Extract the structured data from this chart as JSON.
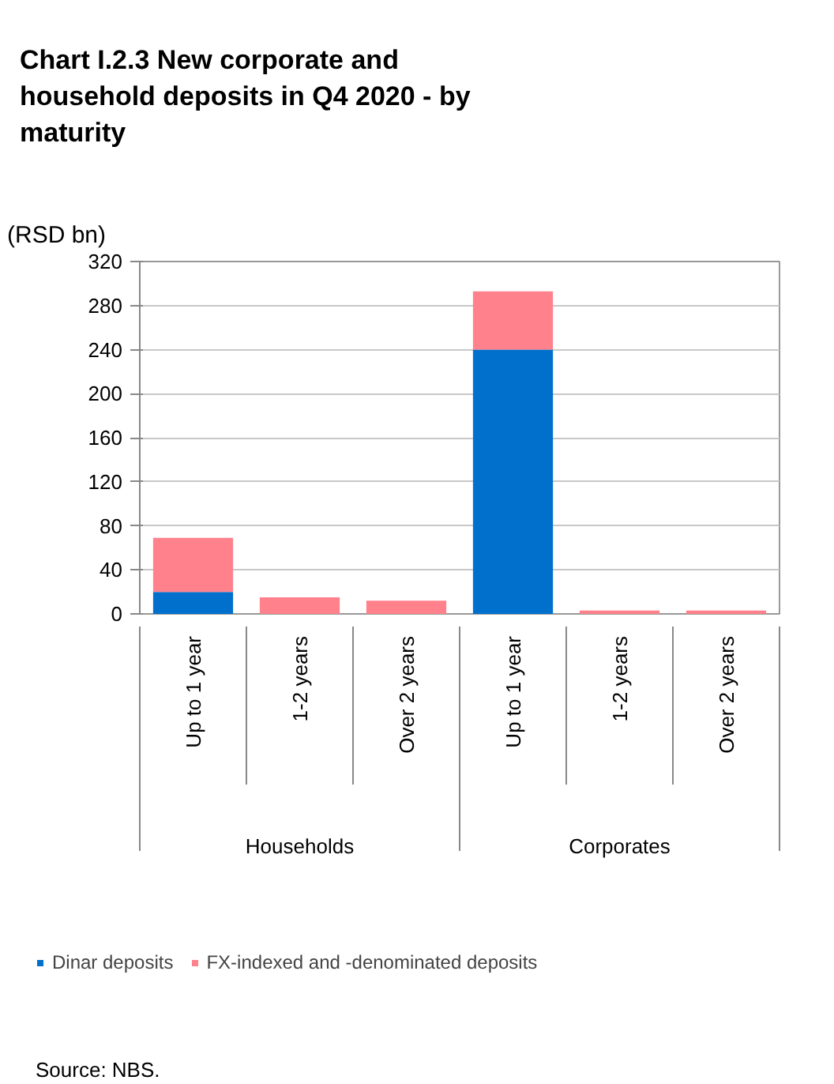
{
  "chart_data": {
    "type": "bar",
    "title": "Chart I.2.3 New corporate and household deposits in Q4 2020 - by maturity",
    "ylabel": "(RSD bn)",
    "categories": [
      "Up to 1 year",
      "1-2 years",
      "Over 2 years",
      "Up to 1 year",
      "1-2 years",
      "Over 2 years"
    ],
    "stacked": true,
    "series": [
      {
        "name": "Dinar deposits",
        "color": "#0070cc",
        "values": [
          20,
          0,
          0,
          240,
          0,
          0
        ]
      },
      {
        "name": "FX-indexed and -denominated deposits",
        "color": "#ff818c",
        "values": [
          49,
          15,
          12,
          53,
          3,
          3
        ]
      }
    ],
    "ylim": [
      0,
      320
    ],
    "yticks": [
      0,
      40,
      80,
      120,
      160,
      200,
      240,
      280,
      320
    ],
    "grid": "y",
    "legend": "bottom",
    "annotations": [
      "Households",
      "Corporates",
      "Source: NBS."
    ]
  }
}
